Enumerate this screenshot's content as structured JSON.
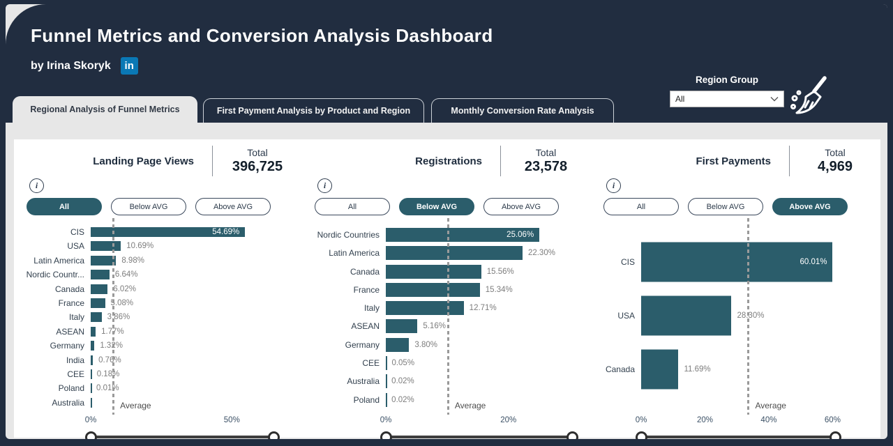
{
  "colors": {
    "navy": "#212d40",
    "teal": "#2b5d6b",
    "page_bg": "#e7e7e7",
    "card_bg": "#ffffff",
    "linkedin_blue": "#0a78b5"
  },
  "header": {
    "title": "Funnel Metrics and Conversion Analysis Dashboard",
    "byline": "by Irina Skoryk",
    "linkedin_label": "in"
  },
  "filters": {
    "region_group_label": "Region Group",
    "region_group_value": "All"
  },
  "tabs": [
    {
      "label": "Regional Analysis of Funnel Metrics",
      "active": true
    },
    {
      "label": "First Payment Analysis by Product and Region",
      "active": false
    },
    {
      "label": "Monthly Conversion Rate Analysis",
      "active": false
    }
  ],
  "chart_data": [
    {
      "type": "bar",
      "orientation": "horizontal",
      "title": "Landing Page Views",
      "total_label": "Total",
      "total_value": "396,725",
      "filter_buttons": [
        {
          "label": "All",
          "selected": true
        },
        {
          "label": "Below AVG",
          "selected": false
        },
        {
          "label": "Above AVG",
          "selected": false
        }
      ],
      "categories": [
        "CIS",
        "USA",
        "Latin America",
        "Nordic Countr...",
        "Canada",
        "France",
        "Italy",
        "ASEAN",
        "Germany",
        "India",
        "CEE",
        "Poland",
        "Australia"
      ],
      "values": [
        54.69,
        10.69,
        8.98,
        6.64,
        6.02,
        5.08,
        3.86,
        1.77,
        1.32,
        0.76,
        0.18,
        0.01,
        0
      ],
      "value_labels": [
        "54.69%",
        "10.69%",
        "8.98%",
        "6.64%",
        "6.02%",
        "5.08%",
        "3.86%",
        "1.77%",
        "1.32%",
        "0.76%",
        "0.18%",
        "0.01%",
        ""
      ],
      "xlim": [
        0,
        65
      ],
      "ticks": [
        {
          "value": 0,
          "label": "0%"
        },
        {
          "value": 50,
          "label": "50%"
        }
      ],
      "average": {
        "value": 7.69,
        "label": "Average"
      }
    },
    {
      "type": "bar",
      "orientation": "horizontal",
      "title": "Registrations",
      "total_label": "Total",
      "total_value": "23,578",
      "filter_buttons": [
        {
          "label": "All",
          "selected": false
        },
        {
          "label": "Below AVG",
          "selected": true
        },
        {
          "label": "Above AVG",
          "selected": false
        }
      ],
      "categories": [
        "Nordic Countries",
        "Latin America",
        "Canada",
        "France",
        "Italy",
        "ASEAN",
        "Germany",
        "CEE",
        "Australia",
        "Poland"
      ],
      "values": [
        25.06,
        22.3,
        15.56,
        15.34,
        12.71,
        5.16,
        3.8,
        0.05,
        0.02,
        0.02
      ],
      "value_labels": [
        "25.06%",
        "22.30%",
        "15.56%",
        "15.34%",
        "12.71%",
        "5.16%",
        "3.80%",
        "0.05%",
        "0.02%",
        "0.02%"
      ],
      "xlim": [
        0,
        30.5
      ],
      "ticks": [
        {
          "value": 0,
          "label": "0%"
        },
        {
          "value": 20,
          "label": "20%"
        }
      ],
      "average": {
        "value": 10.0,
        "label": "Average"
      }
    },
    {
      "type": "bar",
      "orientation": "horizontal",
      "title": "First Payments",
      "total_label": "Total",
      "total_value": "4,969",
      "filter_buttons": [
        {
          "label": "All",
          "selected": false
        },
        {
          "label": "Below AVG",
          "selected": false
        },
        {
          "label": "Above AVG",
          "selected": true
        }
      ],
      "categories": [
        "CIS",
        "USA",
        "Canada"
      ],
      "values": [
        60.01,
        28.3,
        11.69
      ],
      "value_labels": [
        "60.01%",
        "28.30%",
        "11.69%"
      ],
      "xlim": [
        0,
        61
      ],
      "ticks": [
        {
          "value": 0,
          "label": "0%"
        },
        {
          "value": 20,
          "label": "20%"
        },
        {
          "value": 40,
          "label": "40%"
        },
        {
          "value": 60,
          "label": "60%"
        }
      ],
      "average": {
        "value": 33.33,
        "label": "Average"
      }
    }
  ]
}
